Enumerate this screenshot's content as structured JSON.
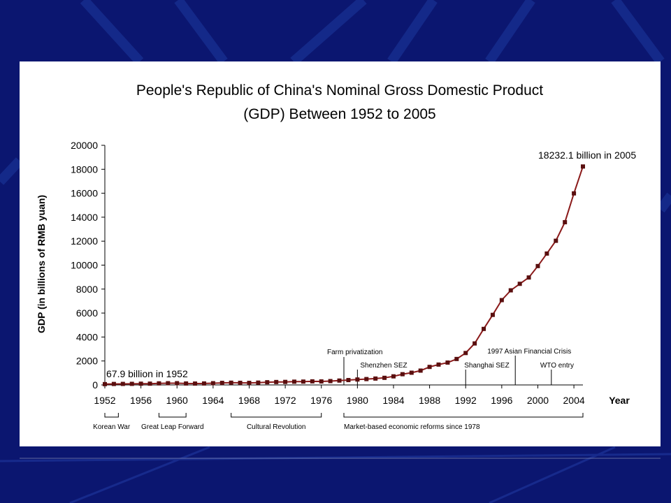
{
  "theme": {
    "background": "#0b1670",
    "line_color": "#8b1a1a",
    "marker_color": "#5a0f0f"
  },
  "chart_data": {
    "type": "line",
    "title_line1": "People's Republic of China's Nominal Gross Domestic Product",
    "title_line2": "(GDP) Between 1952 to 2005",
    "ylabel": "GDP (in billions of RMB yuan)",
    "xlabel": "Year",
    "ylim": [
      0,
      20000
    ],
    "xlim": [
      1952,
      2005
    ],
    "y_ticks": [
      "0",
      "2000",
      "4000",
      "6000",
      "8000",
      "10000",
      "12000",
      "14000",
      "16000",
      "18000",
      "20000"
    ],
    "x_ticks": [
      "1952",
      "1956",
      "1960",
      "1964",
      "1968",
      "1972",
      "1976",
      "1980",
      "1984",
      "1988",
      "1992",
      "1996",
      "2000",
      "2004"
    ],
    "x": [
      1952,
      1953,
      1954,
      1955,
      1956,
      1957,
      1958,
      1959,
      1960,
      1961,
      1962,
      1963,
      1964,
      1965,
      1966,
      1967,
      1968,
      1969,
      1970,
      1971,
      1972,
      1973,
      1974,
      1975,
      1976,
      1977,
      1978,
      1979,
      1980,
      1981,
      1982,
      1983,
      1984,
      1985,
      1986,
      1987,
      1988,
      1989,
      1990,
      1991,
      1992,
      1993,
      1994,
      1995,
      1996,
      1997,
      1998,
      1999,
      2000,
      2001,
      2002,
      2003,
      2004,
      2005
    ],
    "values": [
      67.9,
      82,
      86,
      91,
      103,
      107,
      131,
      144,
      146,
      122,
      115,
      123,
      145,
      172,
      187,
      177,
      172,
      194,
      225,
      243,
      252,
      272,
      279,
      299,
      294,
      320,
      365,
      406,
      454,
      489,
      532,
      593,
      717,
      896,
      1020,
      1196,
      1504,
      1699,
      1867,
      2166,
      2664,
      3463,
      4676,
      5848,
      7080,
      7897,
      8440,
      8968,
      9922,
      10966,
      12033,
      13582,
      15988,
      18232.1
    ],
    "annotations": {
      "start_label": "67.9 billion in 1952",
      "end_label": "18232.1 billion in 2005"
    },
    "events": [
      {
        "label": "Farm privatization",
        "year": 1978.5
      },
      {
        "label": "Shenzhen SEZ",
        "year": 1980
      },
      {
        "label": "Shanghai SEZ",
        "year": 1992
      },
      {
        "label": "1997 Asian Financial Crisis",
        "year": 1997.5
      },
      {
        "label": "WTO entry",
        "year": 2001.5
      }
    ],
    "periods": [
      {
        "label": "Korean War",
        "start": 1952,
        "end": 1953.5
      },
      {
        "label": "Great Leap Forward",
        "start": 1958,
        "end": 1961
      },
      {
        "label": "Cultural Revolution",
        "start": 1966,
        "end": 1976
      },
      {
        "label": "Market-based economic reforms since 1978",
        "start": 1978.5,
        "end": 2005
      }
    ],
    "grid": false,
    "legend": "none"
  }
}
